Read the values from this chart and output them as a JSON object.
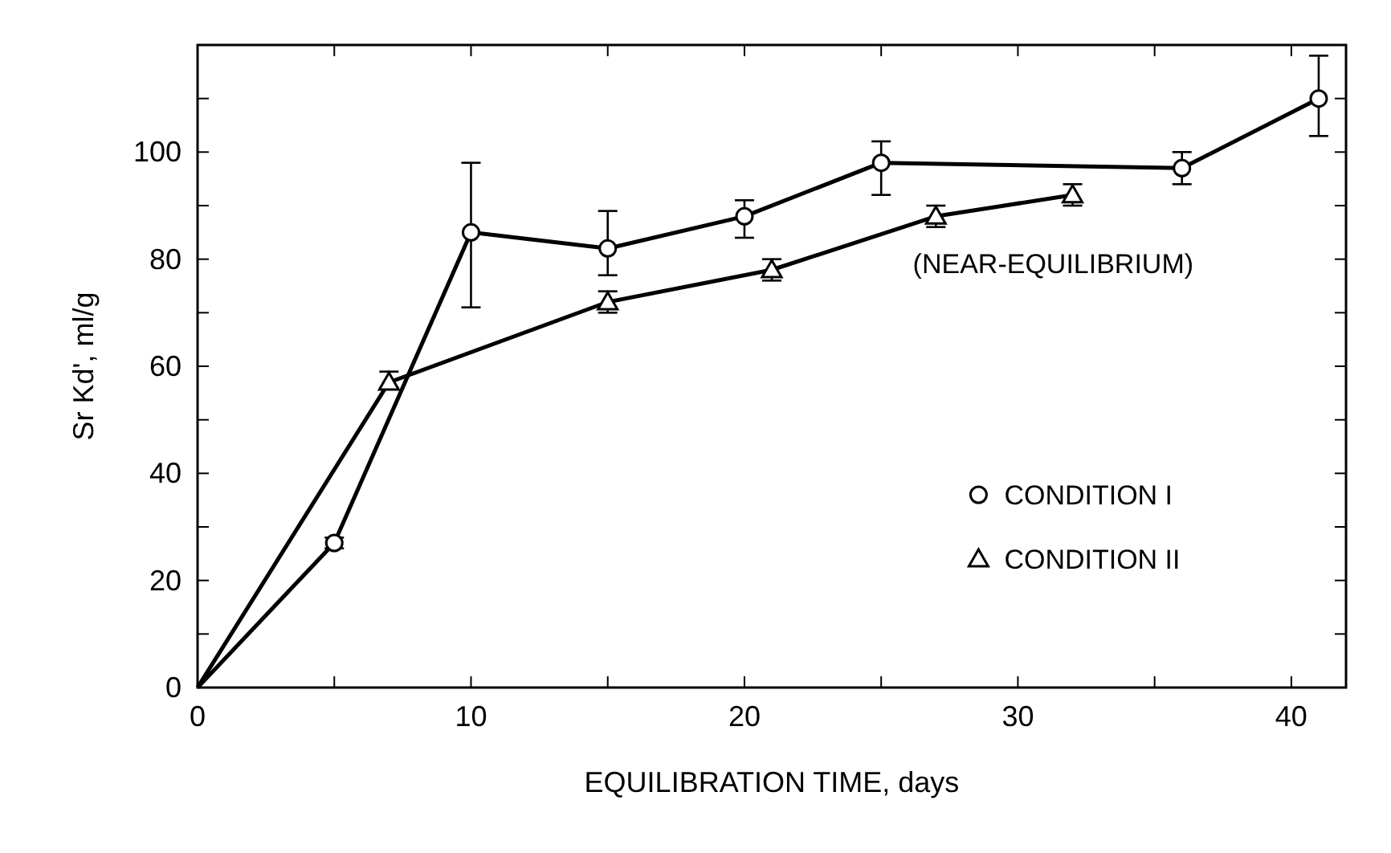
{
  "chart_data": {
    "type": "line",
    "xlabel": "EQUILIBRATION TIME, days",
    "ylabel": "Sr Kd', ml/g",
    "xlim": [
      0,
      42
    ],
    "ylim": [
      0,
      120
    ],
    "xticks": [
      0,
      {
        "value": 5,
        "label": null
      },
      10,
      {
        "value": 15,
        "label": null
      },
      20,
      {
        "value": 25,
        "label": null
      },
      30,
      {
        "value": 35,
        "label": null
      },
      40
    ],
    "yticks": [
      0,
      {
        "value": 10,
        "label": null
      },
      20,
      {
        "value": 30,
        "label": null
      },
      40,
      {
        "value": 50,
        "label": null
      },
      60,
      {
        "value": 70,
        "label": null
      },
      80,
      {
        "value": 90,
        "label": null
      },
      100,
      {
        "value": 110,
        "label": null
      }
    ],
    "grid": false,
    "legend": "bottom right",
    "line_style": "solid",
    "annotations": [
      "(NEAR-EQUILIBRIUM)"
    ],
    "series": [
      {
        "name": "CONDITION I",
        "color": "#000000",
        "marker": "circle",
        "x": [
          0,
          5,
          10,
          15,
          20,
          25,
          36,
          41
        ],
        "values": [
          0,
          27,
          85,
          82,
          88,
          98,
          97,
          110
        ],
        "errors": [
          null,
          [
            26,
            28
          ],
          [
            71,
            98
          ],
          [
            77,
            89
          ],
          [
            84,
            91
          ],
          [
            92,
            102
          ],
          [
            94,
            100
          ],
          [
            103,
            118
          ]
        ]
      },
      {
        "name": "CONDITION II",
        "color": "#000000",
        "marker": "triangle",
        "x": [
          0,
          7,
          15,
          21,
          27,
          32
        ],
        "values": [
          0,
          57,
          72,
          78,
          88,
          92
        ],
        "errors": [
          null,
          [
            56,
            59
          ],
          [
            70,
            74
          ],
          [
            76,
            80
          ],
          [
            86,
            90
          ],
          [
            90,
            94
          ]
        ]
      }
    ]
  }
}
